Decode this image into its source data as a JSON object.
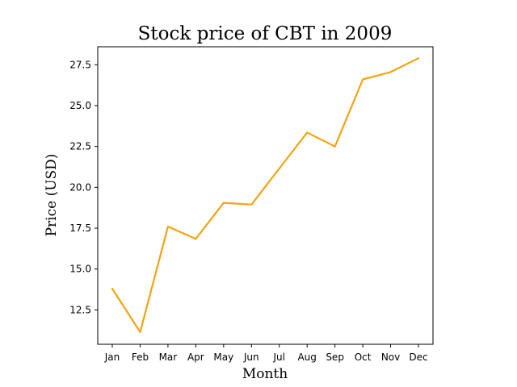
{
  "chart_data": {
    "type": "line",
    "title": "Stock price of CBT in 2009",
    "xlabel": "Month",
    "ylabel": "Price (USD)",
    "categories": [
      "Jan",
      "Feb",
      "Mar",
      "Apr",
      "May",
      "Jun",
      "Jul",
      "Aug",
      "Sep",
      "Oct",
      "Nov",
      "Dec"
    ],
    "series": [
      {
        "values": [
          13.8,
          11.15,
          17.6,
          16.85,
          19.05,
          18.95,
          21.15,
          23.35,
          22.5,
          26.6,
          27.05,
          27.9
        ],
        "color": "#f5a30f"
      }
    ],
    "ylim": [
      10.4,
      28.6
    ],
    "yticks": [
      12.5,
      15.0,
      17.5,
      20.0,
      22.5,
      25.0,
      27.5
    ],
    "ytick_labels": [
      "12.5",
      "15.0",
      "17.5",
      "20.0",
      "22.5",
      "25.0",
      "27.5"
    ],
    "grid": false,
    "legend": "none"
  }
}
